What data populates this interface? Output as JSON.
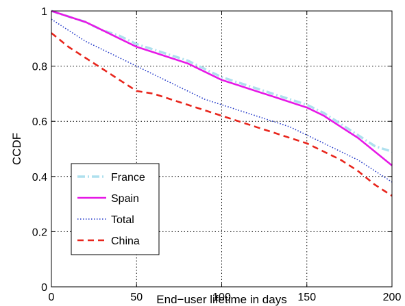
{
  "chart_data": {
    "type": "line",
    "title": "",
    "xlabel": "End−user lifetime in days",
    "ylabel": "CCDF",
    "xlim": [
      0,
      200
    ],
    "ylim": [
      0,
      1
    ],
    "xticks": [
      0,
      50,
      100,
      150,
      200
    ],
    "yticks": [
      0,
      0.2,
      0.4,
      0.6,
      0.8,
      1
    ],
    "xtick_labels": [
      "0",
      "50",
      "100",
      "150",
      "200"
    ],
    "ytick_labels": [
      "0",
      "0.2",
      "0.4",
      "0.6",
      "0.8",
      "1"
    ],
    "grid": true,
    "legend_position": "lower-left",
    "series": [
      {
        "name": "France",
        "color": "#aee0ee",
        "style": "dashdot",
        "x": [
          0,
          10,
          20,
          30,
          40,
          50,
          60,
          70,
          80,
          90,
          100,
          110,
          120,
          130,
          140,
          150,
          160,
          170,
          180,
          190,
          200
        ],
        "y": [
          1.0,
          0.98,
          0.96,
          0.93,
          0.91,
          0.88,
          0.86,
          0.84,
          0.82,
          0.79,
          0.76,
          0.74,
          0.72,
          0.7,
          0.68,
          0.66,
          0.63,
          0.59,
          0.55,
          0.51,
          0.49
        ]
      },
      {
        "name": "Spain",
        "color": "#e619e6",
        "style": "solid",
        "x": [
          0,
          10,
          20,
          30,
          40,
          50,
          60,
          70,
          80,
          90,
          100,
          110,
          120,
          130,
          140,
          150,
          160,
          170,
          180,
          190,
          200
        ],
        "y": [
          1.0,
          0.98,
          0.96,
          0.93,
          0.9,
          0.87,
          0.85,
          0.83,
          0.81,
          0.78,
          0.75,
          0.73,
          0.71,
          0.69,
          0.67,
          0.65,
          0.62,
          0.58,
          0.54,
          0.49,
          0.44
        ]
      },
      {
        "name": "Total",
        "color": "#1f35c8",
        "style": "dotted",
        "x": [
          0,
          10,
          20,
          30,
          40,
          50,
          60,
          70,
          80,
          90,
          100,
          110,
          120,
          130,
          140,
          150,
          160,
          170,
          180,
          190,
          200
        ],
        "y": [
          0.97,
          0.93,
          0.89,
          0.86,
          0.83,
          0.8,
          0.77,
          0.74,
          0.71,
          0.68,
          0.66,
          0.64,
          0.62,
          0.6,
          0.58,
          0.55,
          0.52,
          0.49,
          0.46,
          0.42,
          0.38
        ]
      },
      {
        "name": "China",
        "color": "#e8251c",
        "style": "dashed",
        "x": [
          0,
          10,
          20,
          30,
          40,
          50,
          60,
          70,
          80,
          90,
          100,
          110,
          120,
          130,
          140,
          150,
          160,
          170,
          180,
          190,
          200
        ],
        "y": [
          0.92,
          0.87,
          0.83,
          0.79,
          0.75,
          0.71,
          0.7,
          0.68,
          0.66,
          0.64,
          0.62,
          0.6,
          0.58,
          0.56,
          0.54,
          0.52,
          0.49,
          0.46,
          0.42,
          0.37,
          0.33
        ]
      }
    ]
  }
}
